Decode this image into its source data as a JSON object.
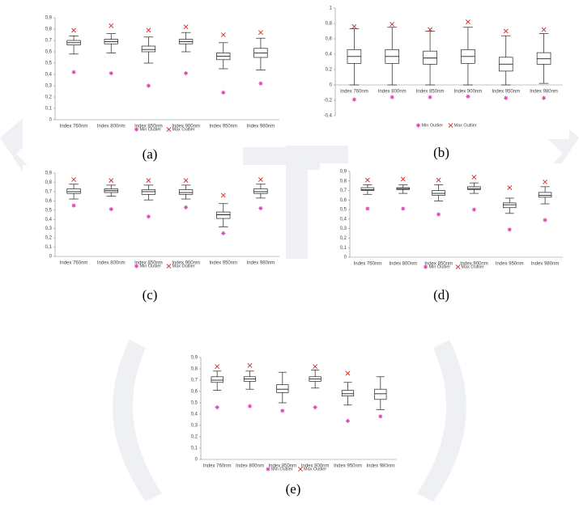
{
  "chart_data": [
    {
      "type": "box",
      "caption": "(a)",
      "categories": [
        "Index 760nm",
        "Index 800nm",
        "Index 850nm",
        "Index 900nm",
        "Index 950nm",
        "Index 980nm"
      ],
      "whisker_low": [
        0.58,
        0.59,
        0.5,
        0.6,
        0.45,
        0.44
      ],
      "q1": [
        0.66,
        0.67,
        0.6,
        0.67,
        0.53,
        0.55
      ],
      "median": [
        0.68,
        0.69,
        0.62,
        0.69,
        0.56,
        0.59
      ],
      "q3": [
        0.7,
        0.71,
        0.65,
        0.71,
        0.59,
        0.63
      ],
      "whisker_high": [
        0.74,
        0.76,
        0.73,
        0.77,
        0.68,
        0.72
      ],
      "outliers": [
        {
          "name": "Min Outlier",
          "color": "#e040b0",
          "values": [
            0.42,
            0.41,
            0.3,
            0.41,
            0.24,
            0.32
          ]
        },
        {
          "name": "Max Outlier",
          "color": "#d02828",
          "values": [
            0.79,
            0.83,
            0.79,
            0.82,
            0.75,
            0.77
          ]
        }
      ],
      "ylim": [
        0,
        0.9
      ],
      "yticks": [
        0,
        {
          "value": 0.1,
          "label": "0,1"
        },
        {
          "value": 0.2,
          "label": "0,2"
        },
        {
          "value": 0.3,
          "label": "0,3"
        },
        {
          "value": 0.4,
          "label": "0,4"
        },
        {
          "value": 0.5,
          "label": "0,5"
        },
        {
          "value": 0.6,
          "label": "0,6"
        },
        {
          "value": 0.7,
          "label": "0,7"
        },
        {
          "value": 0.8,
          "label": "0,8"
        },
        {
          "value": 0.9,
          "label": "0,9"
        }
      ]
    },
    {
      "type": "box",
      "caption": "(b)",
      "categories": [
        "Index 760nm",
        "Index 800nm",
        "Index 850nm",
        "Index 900nm",
        "Index 950nm",
        "Index 980nm"
      ],
      "whisker_low": [
        0,
        0,
        0,
        0,
        0,
        0.02
      ],
      "q1": [
        0.28,
        0.28,
        0.27,
        0.28,
        0.18,
        0.27
      ],
      "median": [
        0.37,
        0.37,
        0.35,
        0.37,
        0.27,
        0.34
      ],
      "q3": [
        0.46,
        0.46,
        0.44,
        0.46,
        0.36,
        0.42
      ],
      "whisker_high": [
        0.73,
        0.75,
        0.7,
        0.75,
        0.64,
        0.67
      ],
      "outliers": [
        {
          "name": "Min Outlier",
          "color": "#e040b0",
          "values": [
            -0.19,
            -0.16,
            -0.16,
            -0.15,
            -0.17,
            -0.17
          ]
        },
        {
          "name": "Max Outlier",
          "color": "#d02828",
          "values": [
            0.76,
            0.79,
            0.72,
            0.82,
            0.7,
            0.72
          ]
        }
      ],
      "ylim": [
        -0.4,
        1
      ],
      "yticks": [
        {
          "value": -0.4,
          "label": "-0,4"
        },
        {
          "value": -0.2,
          "label": "-0,2"
        },
        0,
        {
          "value": 0.2,
          "label": "0,2"
        },
        {
          "value": 0.4,
          "label": "0,4"
        },
        {
          "value": 0.6,
          "label": "0,6"
        },
        {
          "value": 0.8,
          "label": "0,8"
        },
        1
      ]
    },
    {
      "type": "box",
      "caption": "(c)",
      "categories": [
        "Index 760nm",
        "Index 800nm",
        "Index 850nm",
        "Index 900nm",
        "Index 950nm",
        "Index 980nm"
      ],
      "whisker_low": [
        0.62,
        0.65,
        0.61,
        0.62,
        0.32,
        0.63
      ],
      "q1": [
        0.68,
        0.69,
        0.67,
        0.67,
        0.41,
        0.68
      ],
      "median": [
        0.7,
        0.71,
        0.7,
        0.69,
        0.45,
        0.7
      ],
      "q3": [
        0.73,
        0.73,
        0.72,
        0.72,
        0.48,
        0.73
      ],
      "whisker_high": [
        0.78,
        0.77,
        0.77,
        0.77,
        0.57,
        0.78
      ],
      "outliers": [
        {
          "name": "Min Outlier",
          "color": "#e040b0",
          "values": [
            0.55,
            0.51,
            0.43,
            0.53,
            0.25,
            0.52
          ]
        },
        {
          "name": "Max Outlier",
          "color": "#d02828",
          "values": [
            0.83,
            0.82,
            0.82,
            0.82,
            0.66,
            0.83
          ]
        }
      ],
      "ylim": [
        0,
        0.9
      ],
      "yticks": [
        0,
        {
          "value": 0.1,
          "label": "0,1"
        },
        {
          "value": 0.2,
          "label": "0,2"
        },
        {
          "value": 0.3,
          "label": "0,3"
        },
        {
          "value": 0.4,
          "label": "0,4"
        },
        {
          "value": 0.5,
          "label": "0,5"
        },
        {
          "value": 0.6,
          "label": "0,6"
        },
        {
          "value": 0.7,
          "label": "0,7"
        },
        {
          "value": 0.8,
          "label": "0,8"
        },
        {
          "value": 0.9,
          "label": "0,9"
        }
      ]
    },
    {
      "type": "box",
      "caption": "(d)",
      "categories": [
        "Index 760nm",
        "Index 800nm",
        "Index 850nm",
        "Index 900nm",
        "Index 950nm",
        "Index 980nm"
      ],
      "whisker_low": [
        0.66,
        0.67,
        0.59,
        0.67,
        0.46,
        0.56
      ],
      "q1": [
        0.7,
        0.71,
        0.65,
        0.71,
        0.52,
        0.63
      ],
      "median": [
        0.71,
        0.72,
        0.67,
        0.72,
        0.55,
        0.65
      ],
      "q3": [
        0.73,
        0.73,
        0.7,
        0.74,
        0.57,
        0.68
      ],
      "whisker_high": [
        0.76,
        0.76,
        0.76,
        0.78,
        0.62,
        0.74
      ],
      "outliers": [
        {
          "name": "Min Outlier",
          "color": "#e040b0",
          "values": [
            0.51,
            0.51,
            0.45,
            0.5,
            0.29,
            0.39
          ]
        },
        {
          "name": "Max Outlier",
          "color": "#d02828",
          "values": [
            0.81,
            0.82,
            0.81,
            0.84,
            0.73,
            0.79
          ]
        }
      ],
      "ylim": [
        0,
        0.9
      ],
      "yticks": [
        0,
        {
          "value": 0.1,
          "label": "0,1"
        },
        {
          "value": 0.2,
          "label": "0,2"
        },
        {
          "value": 0.3,
          "label": "0,3"
        },
        {
          "value": 0.4,
          "label": "0,4"
        },
        {
          "value": 0.5,
          "label": "0,5"
        },
        {
          "value": 0.6,
          "label": "0,6"
        },
        {
          "value": 0.7,
          "label": "0,7"
        },
        {
          "value": 0.8,
          "label": "0,8"
        },
        {
          "value": 0.9,
          "label": "0,9"
        }
      ]
    },
    {
      "type": "box",
      "caption": "(e)",
      "categories": [
        "Index 760nm",
        "Index 800nm",
        "Index 850nm",
        "Index 900nm",
        "Index 950nm",
        "Index 980nm"
      ],
      "whisker_low": [
        0.61,
        0.62,
        0.5,
        0.63,
        0.48,
        0.44
      ],
      "q1": [
        0.68,
        0.69,
        0.59,
        0.69,
        0.56,
        0.53
      ],
      "median": [
        0.7,
        0.71,
        0.62,
        0.71,
        0.58,
        0.58
      ],
      "q3": [
        0.73,
        0.73,
        0.66,
        0.73,
        0.61,
        0.62
      ],
      "whisker_high": [
        0.78,
        0.78,
        0.77,
        0.79,
        0.68,
        0.73
      ],
      "outliers": [
        {
          "name": "Min Outlier",
          "color": "#e040b0",
          "values": [
            0.46,
            0.47,
            0.43,
            0.46,
            0.34,
            0.38
          ]
        },
        {
          "name": "Max Outlier",
          "color": "#d02828",
          "values": [
            0.82,
            0.83,
            null,
            0.82,
            0.76,
            null
          ]
        }
      ],
      "ylim": [
        0,
        0.9
      ],
      "yticks": [
        0,
        {
          "value": 0.1,
          "label": "0,1"
        },
        {
          "value": 0.2,
          "label": "0,2"
        },
        {
          "value": 0.3,
          "label": "0,3"
        },
        {
          "value": 0.4,
          "label": "0,4"
        },
        {
          "value": 0.5,
          "label": "0,5"
        },
        {
          "value": 0.6,
          "label": "0,6"
        },
        {
          "value": 0.7,
          "label": "0,7"
        },
        {
          "value": 0.8,
          "label": "0,8"
        },
        {
          "value": 0.9,
          "label": "0,9"
        }
      ]
    }
  ]
}
